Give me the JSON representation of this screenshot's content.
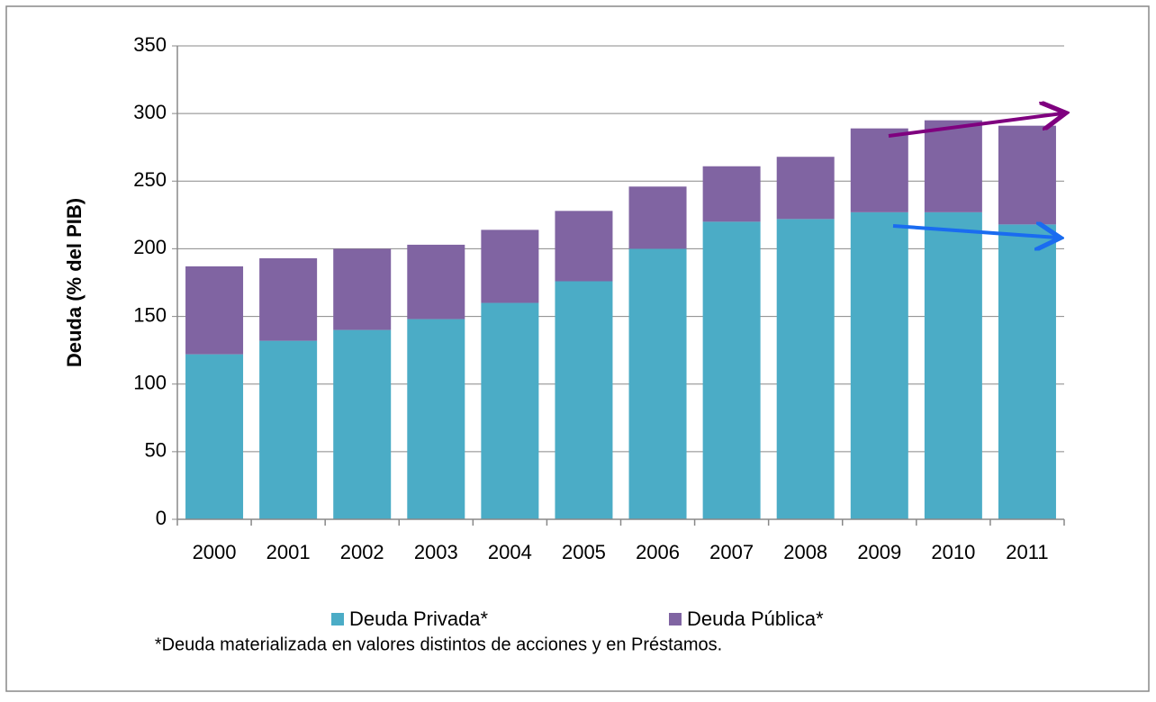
{
  "chart_data": {
    "type": "stacked_bar",
    "y_label": "Deuda  (% del  PIB)",
    "categories": [
      "2000",
      "2001",
      "2002",
      "2003",
      "2004",
      "2005",
      "2006",
      "2007",
      "2008",
      "2009",
      "2010",
      "2011"
    ],
    "series": [
      {
        "name": "Deuda Privada*",
        "color": "#4bacc6",
        "values": [
          122,
          132,
          140,
          148,
          160,
          176,
          200,
          220,
          222,
          227,
          227,
          218
        ]
      },
      {
        "name": "Deuda Pública*",
        "color": "#8064a2",
        "values": [
          65,
          61,
          60,
          55,
          54,
          52,
          46,
          41,
          46,
          62,
          68,
          73
        ]
      }
    ],
    "ylim": [
      0,
      350
    ],
    "yticks": [
      0,
      50,
      100,
      150,
      200,
      250,
      300,
      350
    ],
    "grid": true,
    "legend": "bottom",
    "footnote": "*Deuda materializada en valores distintos de acciones y en  Préstamos."
  }
}
